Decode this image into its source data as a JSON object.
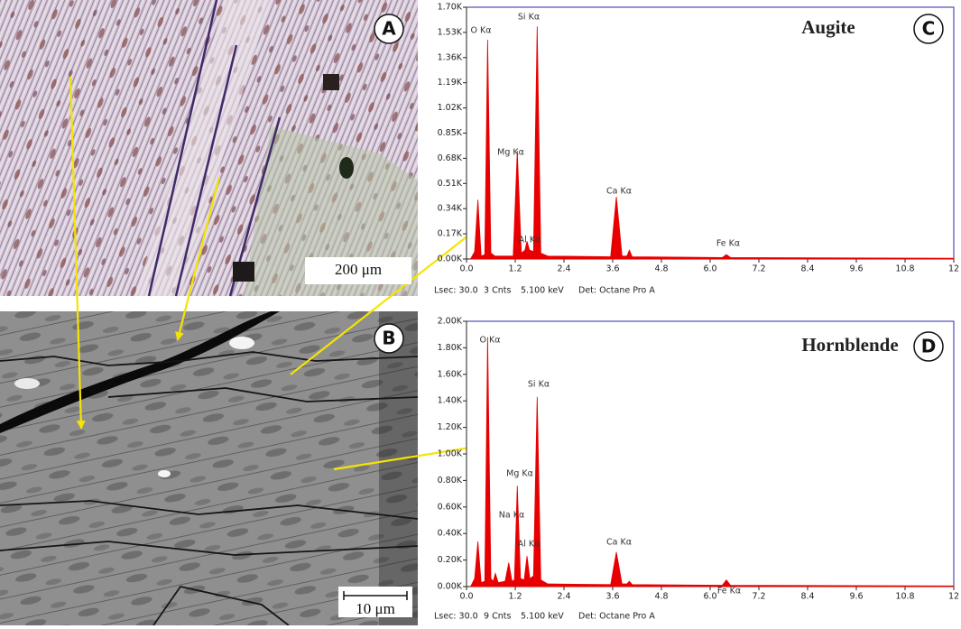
{
  "panels": [
    {
      "label": "A",
      "scale_bar": "200 μm"
    },
    {
      "label": "B",
      "scale_bar": "10 μm"
    }
  ],
  "chart_data": [
    {
      "type": "area",
      "panel_label": "C",
      "title": "Augite",
      "color": "#e80000",
      "x": [
        0.1,
        0.2,
        0.28,
        0.36,
        0.45,
        0.52,
        0.6,
        0.7,
        1.15,
        1.25,
        1.35,
        1.44,
        1.49,
        1.55,
        1.65,
        1.74,
        1.83,
        2.0,
        3.55,
        3.69,
        3.83,
        3.95,
        4.01,
        4.08,
        6.3,
        6.4,
        6.5,
        12
      ],
      "values": [
        0,
        50,
        400,
        20,
        30,
        1480,
        40,
        20,
        20,
        730,
        40,
        60,
        120,
        60,
        50,
        1570,
        40,
        20,
        15,
        420,
        20,
        20,
        60,
        15,
        10,
        30,
        10,
        5
      ],
      "xlim": [
        0,
        12
      ],
      "xticks": [
        {
          "value": 0,
          "label": "0.0"
        },
        1.2,
        2.4,
        3.6,
        4.8,
        {
          "value": 6,
          "label": "6.0"
        },
        7.2,
        8.4,
        9.6,
        10.8,
        12
      ],
      "ylim": [
        0,
        1700
      ],
      "yticks": [
        {
          "value": 0,
          "label": "0.00K"
        },
        {
          "value": 170,
          "label": "0.17K"
        },
        {
          "value": 340,
          "label": "0.34K"
        },
        {
          "value": 510,
          "label": "0.51K"
        },
        {
          "value": 680,
          "label": "0.68K"
        },
        {
          "value": 850,
          "label": "0.85K"
        },
        {
          "value": 1020,
          "label": "1.02K"
        },
        {
          "value": 1190,
          "label": "1.19K"
        },
        {
          "value": 1360,
          "label": "1.36K"
        },
        {
          "value": 1530,
          "label": "1.53K"
        },
        {
          "value": 1700,
          "label": "1.70K"
        }
      ],
      "annotations": [
        "O Kα",
        "Si Kα",
        "Mg Kα",
        "Ca Kα",
        "Al Kα",
        "Fe Kα"
      ],
      "footer": [
        "Lsec: 30.0",
        "3 Cnts",
        "5.100 keV",
        "Det: Octane Pro A"
      ]
    },
    {
      "type": "area",
      "panel_label": "D",
      "title": "Hornblende",
      "color": "#e80000",
      "x": [
        0.1,
        0.2,
        0.28,
        0.36,
        0.45,
        0.52,
        0.6,
        0.66,
        0.71,
        0.78,
        0.95,
        1.04,
        1.12,
        1.18,
        1.25,
        1.33,
        1.42,
        1.49,
        1.56,
        1.65,
        1.74,
        1.83,
        2.0,
        3.55,
        3.69,
        3.83,
        3.95,
        4.01,
        4.08,
        6.3,
        6.4,
        6.5,
        12
      ],
      "values": [
        0,
        60,
        340,
        30,
        40,
        1880,
        60,
        40,
        100,
        30,
        40,
        180,
        40,
        50,
        760,
        60,
        50,
        230,
        60,
        80,
        1430,
        50,
        20,
        15,
        260,
        20,
        20,
        40,
        15,
        10,
        50,
        10,
        5
      ],
      "xlim": [
        0,
        12
      ],
      "xticks": [
        {
          "value": 0,
          "label": "0.0"
        },
        1.2,
        2.4,
        3.6,
        4.8,
        {
          "value": 6,
          "label": "6.0"
        },
        7.2,
        8.4,
        9.6,
        10.8,
        12
      ],
      "ylim": [
        0,
        2000
      ],
      "yticks": [
        {
          "value": 0,
          "label": "0.00K"
        },
        {
          "value": 200,
          "label": "0.20K"
        },
        {
          "value": 400,
          "label": "0.40K"
        },
        {
          "value": 600,
          "label": "0.60K"
        },
        {
          "value": 800,
          "label": "0.80K"
        },
        {
          "value": 1000,
          "label": "1.00K"
        },
        {
          "value": 1200,
          "label": "1.20K"
        },
        {
          "value": 1400,
          "label": "1.40K"
        },
        {
          "value": 1600,
          "label": "1.60K"
        },
        {
          "value": 1800,
          "label": "1.80K"
        },
        {
          "value": 2000,
          "label": "2.00K"
        }
      ],
      "annotations": [
        "O Kα",
        "Si Kα",
        "Mg Kα",
        "Na Kα",
        "Al Kα",
        "Ca Kα",
        "Fe Kα"
      ],
      "footer": [
        "Lsec: 30.0",
        "9 Cnts",
        "5.100 keV",
        "Det: Octane Pro A"
      ]
    }
  ]
}
